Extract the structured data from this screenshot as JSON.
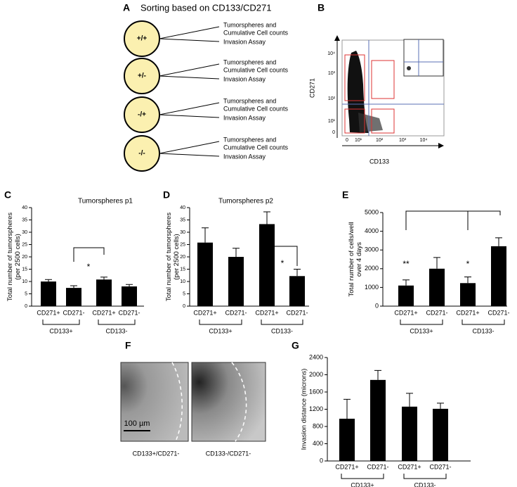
{
  "panel_a": {
    "letter": "A",
    "title": "Sorting based on CD133/CD271",
    "groups": [
      {
        "label": "+/+",
        "outputs": [
          "Tumorspheres and",
          "Cumulative Cell counts",
          "Invasion Assay"
        ]
      },
      {
        "label": "+/-",
        "outputs": [
          "Tumorspheres and",
          "Cumulative Cell counts",
          "Invasion Assay"
        ]
      },
      {
        "label": "-/+",
        "outputs": [
          "Tumorspheres and",
          "Cumulative Cell counts",
          "Invasion Assay"
        ]
      },
      {
        "label": "-/-",
        "outputs": [
          "Tumorspheres and",
          "Cumulative Cell counts",
          "Invasion Assay"
        ]
      }
    ]
  },
  "panel_b": {
    "letter": "B",
    "xlabel": "CD133",
    "ylabel": "CD271",
    "xticks": [
      "0",
      "10¹",
      "10²",
      "10³",
      "10⁴"
    ],
    "yticks": [
      "0",
      "10¹",
      "10²",
      "10³",
      "10⁴"
    ]
  },
  "chart_data": [
    {
      "type": "bar",
      "letter": "C",
      "title": "Tumorspheres p1",
      "ylabel": [
        "Total number of tumorspheres",
        "(per 2500 cells)"
      ],
      "categories": [
        "CD271+",
        "CD271-",
        "CD271+",
        "CD271-"
      ],
      "groups": [
        "CD133+",
        "CD133-"
      ],
      "values": [
        10,
        7.4,
        10.8,
        8
      ],
      "errors": [
        0.8,
        0.9,
        1,
        0.8
      ],
      "color": "#000000",
      "ylim": [
        0,
        40
      ],
      "yticks": [
        0,
        5,
        10,
        15,
        20,
        25,
        30,
        35,
        40
      ],
      "annotations": [
        "*"
      ]
    },
    {
      "type": "bar",
      "letter": "D",
      "title": "Tumorspheres p2",
      "ylabel": [
        "Total number of tumorspheres",
        "(per 2500 cells)"
      ],
      "categories": [
        "CD271+",
        "CD271-",
        "CD271+",
        "CD271-"
      ],
      "groups": [
        "CD133+",
        "CD133-"
      ],
      "values": [
        25.8,
        20,
        33.3,
        12.2
      ],
      "errors": [
        6,
        3.5,
        5,
        2.8
      ],
      "color": "#000000",
      "ylim": [
        0,
        40
      ],
      "yticks": [
        0,
        5,
        10,
        15,
        20,
        25,
        30,
        35,
        40
      ],
      "annotations": [
        "*"
      ]
    },
    {
      "type": "bar",
      "letter": "E",
      "ylabel": [
        "Total number of cells/well",
        "over 4 days"
      ],
      "categories": [
        "CD271+",
        "CD271-",
        "CD271+",
        "CD271-"
      ],
      "groups": [
        "CD133+",
        "CD133-"
      ],
      "values": [
        1100,
        2000,
        1230,
        3200
      ],
      "errors": [
        300,
        600,
        330,
        450
      ],
      "color": "#000000",
      "ylim": [
        0,
        5000
      ],
      "yticks": [
        0,
        1000,
        2000,
        3000,
        4000,
        5000
      ],
      "annotations": [
        "**",
        "*"
      ]
    },
    {
      "type": "bar",
      "letter": "G",
      "ylabel": [
        "Invasion distance (microns)"
      ],
      "categories": [
        "CD271+",
        "CD271-",
        "CD271+",
        "CD271-"
      ],
      "groups": [
        "CD133+",
        "CD133-"
      ],
      "values": [
        980,
        1880,
        1260,
        1210
      ],
      "errors": [
        450,
        220,
        310,
        130
      ],
      "color": "#000000",
      "ylim": [
        0,
        2400
      ],
      "yticks": [
        0,
        400,
        800,
        1200,
        1600,
        2000,
        2400
      ],
      "annotations": []
    }
  ],
  "panel_f": {
    "letter": "F",
    "images": [
      "CD133+/CD271-",
      "CD133-/CD271-"
    ],
    "scale_bar": "100 µm"
  }
}
